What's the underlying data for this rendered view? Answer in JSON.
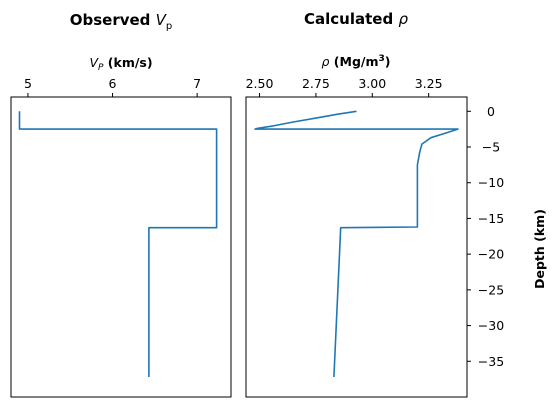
{
  "chart_data": [
    {
      "type": "line",
      "title": "Observed V_p",
      "title_parts": {
        "text": "Observed ",
        "italic": "V",
        "sub": "p"
      },
      "xlabel": "V_P (km/s)",
      "xlabel_parts": {
        "italic": "V",
        "sub": "P",
        "rest": " (km/s)"
      },
      "ylabel": "",
      "xaxis_position": "top",
      "xlim": [
        4.8,
        7.4
      ],
      "ylim": [
        -40,
        2
      ],
      "xticks": [
        5,
        6,
        7
      ],
      "xtick_labels": [
        "5",
        "6",
        "7"
      ],
      "yticks": [],
      "grid": false,
      "series": [
        {
          "color": "#1f77b4",
          "x": [
            4.9,
            4.9,
            7.23,
            7.23,
            6.43,
            6.43
          ],
          "y": [
            0,
            -2.5,
            -2.5,
            -16.3,
            -16.3,
            -37.2
          ]
        }
      ]
    },
    {
      "type": "line",
      "title": "Calculated ρ",
      "title_parts": {
        "text": "Calculated ",
        "italic": "ρ"
      },
      "xlabel": "ρ (Mg/m³)",
      "xlabel_parts": {
        "italic": "ρ",
        "rest": " (Mg/m",
        "sup": "3",
        "rest2": ")"
      },
      "ylabel": "Depth (km)",
      "xaxis_position": "top",
      "yaxis_position": "right",
      "xlim": [
        2.44,
        3.42
      ],
      "ylim": [
        -40,
        2
      ],
      "xticks": [
        2.5,
        2.75,
        3.0,
        3.25
      ],
      "xtick_labels": [
        "2.50",
        "2.75",
        "3.00",
        "3.25"
      ],
      "yticks": [
        0,
        -5,
        -10,
        -15,
        -20,
        -25,
        -30,
        -35
      ],
      "ytick_labels": [
        "0",
        "−5",
        "−10",
        "−15",
        "−20",
        "−25",
        "−30",
        "−35"
      ],
      "grid": false,
      "series": [
        {
          "color": "#1f77b4",
          "x": [
            2.93,
            2.85,
            2.75,
            2.65,
            2.56,
            2.49,
            2.48,
            3.38,
            3.33,
            3.26,
            3.22,
            3.21,
            3.2,
            3.2,
            2.86,
            2.83
          ],
          "y": [
            0,
            -0.4,
            -0.95,
            -1.5,
            -2.05,
            -2.4,
            -2.5,
            -2.5,
            -3.0,
            -3.7,
            -4.6,
            -5.8,
            -7.5,
            -16.2,
            -16.3,
            -37.2
          ]
        }
      ]
    }
  ]
}
